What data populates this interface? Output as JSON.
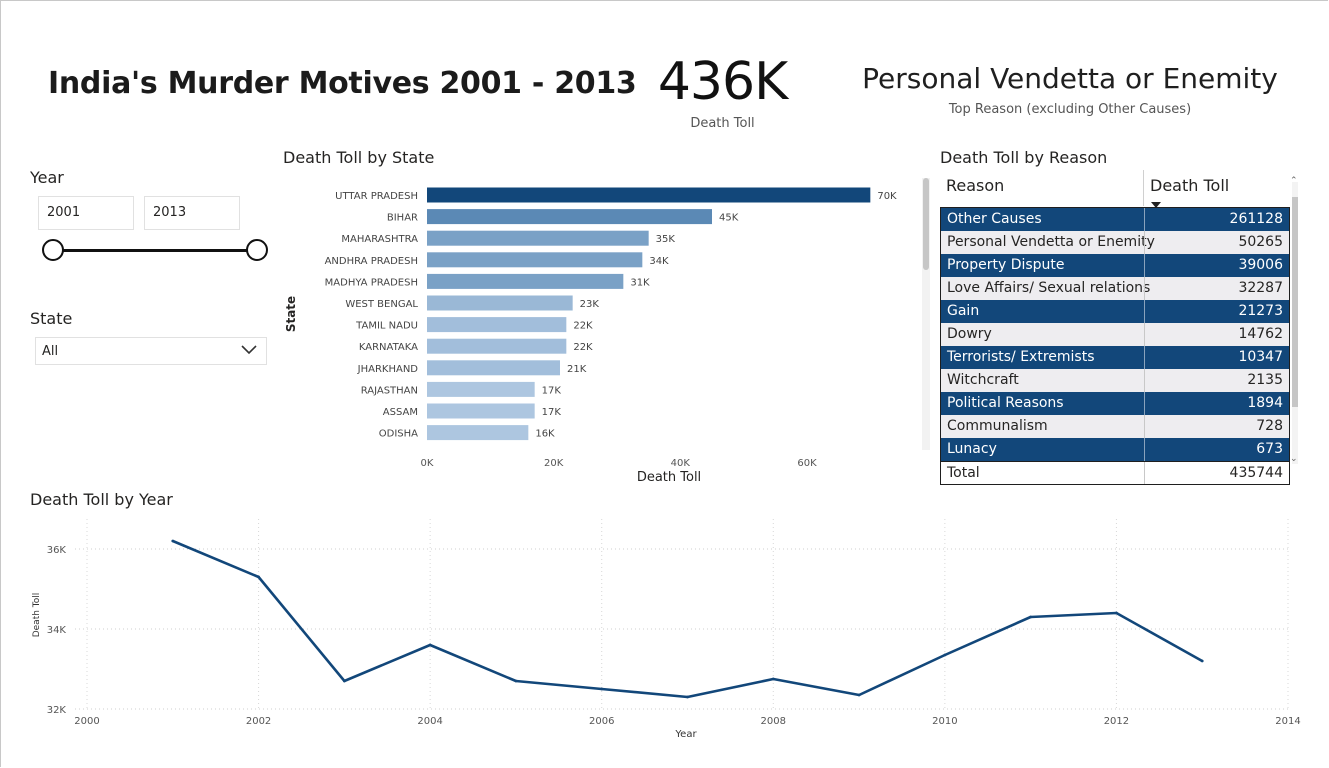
{
  "header": {
    "title": "India's Murder Motives 2001 - 2013",
    "kpi_value": "436K",
    "kpi_label": "Death Toll",
    "top_reason": "Personal Vendetta or Enemity",
    "top_reason_sub": "Top Reason (excluding Other Causes)"
  },
  "filters": {
    "year_title": "Year",
    "year_from": "2001",
    "year_to": "2013",
    "state_title": "State",
    "state_value": "All"
  },
  "colors": {
    "accent_dark": "#12477a",
    "line": "#12477a",
    "table_light_row": "#eeedf0"
  },
  "chart_data": [
    {
      "id": "state",
      "type": "bar",
      "orientation": "horizontal",
      "title": "Death Toll by State",
      "xlabel": "Death Toll",
      "ylabel": "State",
      "categories": [
        "UTTAR PRADESH",
        "BIHAR",
        "MAHARASHTRA",
        "ANDHRA PRADESH",
        "MADHYA PRADESH",
        "WEST BENGAL",
        "TAMIL NADU",
        "KARNATAKA",
        "JHARKHAND",
        "RAJASTHAN",
        "ASSAM",
        "ODISHA"
      ],
      "values": [
        70000,
        45000,
        35000,
        34000,
        31000,
        23000,
        22000,
        22000,
        21000,
        17000,
        17000,
        16000
      ],
      "data_labels": [
        "70K",
        "45K",
        "35K",
        "34K",
        "31K",
        "23K",
        "22K",
        "22K",
        "21K",
        "17K",
        "17K",
        "16K"
      ],
      "bar_colors": [
        "#12477a",
        "#5b89b5",
        "#7aa1c6",
        "#7aa1c6",
        "#7aa1c6",
        "#9ab8d6",
        "#a2bedb",
        "#a2bedb",
        "#a2bedb",
        "#adc6e0",
        "#adc6e0",
        "#adc6e0"
      ],
      "xticks": [
        0,
        20000,
        40000,
        60000
      ],
      "xtick_labels": [
        "0K",
        "20K",
        "40K",
        "60K"
      ],
      "xlim": [
        0,
        72000
      ]
    },
    {
      "id": "year",
      "type": "line",
      "title": "Death Toll by Year",
      "xlabel": "Year",
      "ylabel": "Death Toll",
      "x": [
        2001,
        2002,
        2003,
        2004,
        2005,
        2006,
        2007,
        2008,
        2009,
        2010,
        2011,
        2012,
        2013
      ],
      "values": [
        36200,
        35300,
        32700,
        33600,
        32700,
        32500,
        32300,
        32750,
        32350,
        33350,
        34300,
        34400,
        33200
      ],
      "xticks": [
        2000,
        2002,
        2004,
        2006,
        2008,
        2010,
        2012,
        2014
      ],
      "xtick_labels": [
        "2000",
        "2002",
        "2004",
        "2006",
        "2008",
        "2010",
        "2012",
        "2014"
      ],
      "yticks": [
        32000,
        34000,
        36000
      ],
      "ytick_labels": [
        "32K",
        "34K",
        "36K"
      ],
      "xlim": [
        2000,
        2014
      ],
      "ylim": [
        32000,
        36600
      ],
      "grid": true
    }
  ],
  "reason_table": {
    "title": "Death Toll by Reason",
    "col_reason": "Reason",
    "col_toll": "Death Toll",
    "rows": [
      {
        "reason": "Other Causes",
        "toll": "261128"
      },
      {
        "reason": "Personal Vendetta or Enemity",
        "toll": "50265"
      },
      {
        "reason": "Property Dispute",
        "toll": "39006"
      },
      {
        "reason": "Love Affairs/ Sexual relations",
        "toll": "32287"
      },
      {
        "reason": "Gain",
        "toll": "21273"
      },
      {
        "reason": "Dowry",
        "toll": "14762"
      },
      {
        "reason": "Terrorists/ Extremists",
        "toll": "10347"
      },
      {
        "reason": "Witchcraft",
        "toll": "2135"
      },
      {
        "reason": "Political Reasons",
        "toll": "1894"
      },
      {
        "reason": "Communalism",
        "toll": "728"
      },
      {
        "reason": "Lunacy",
        "toll": "673"
      }
    ],
    "total_label": "Total",
    "total_value": "435744"
  }
}
